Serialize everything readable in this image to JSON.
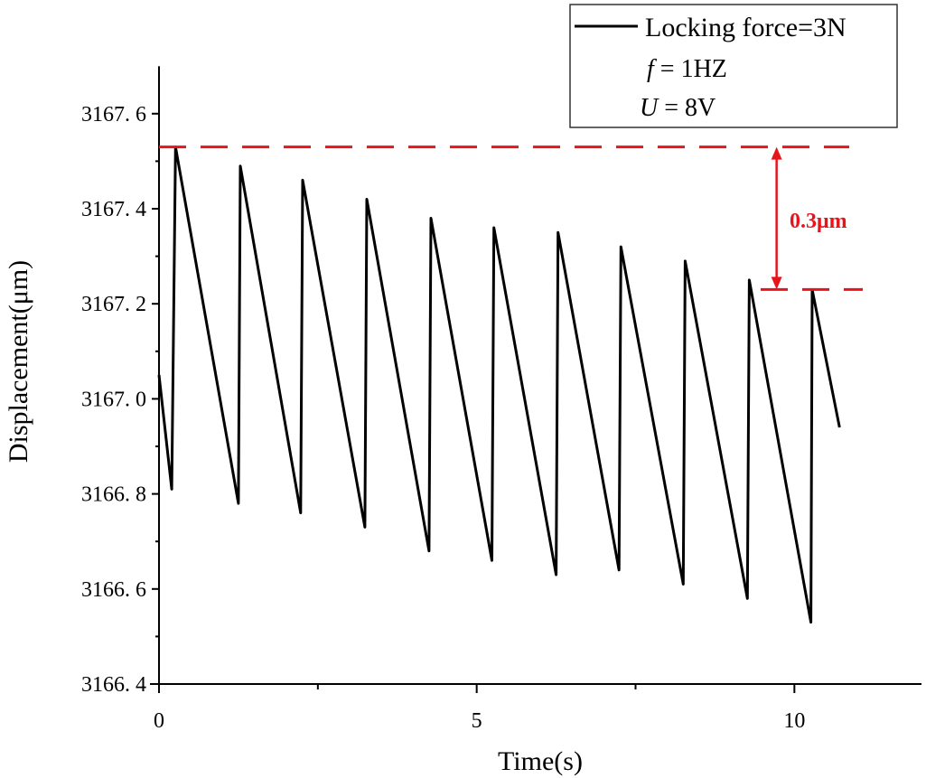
{
  "chart_data": {
    "type": "line",
    "title": "",
    "xlabel": "Time(s)",
    "ylabel": "Displacement(μm)",
    "xlim": [
      0,
      12
    ],
    "ylim": [
      3166.4,
      3167.7
    ],
    "x_ticks": [
      0,
      5,
      10
    ],
    "x_tick_labels": [
      "0",
      "5",
      "10"
    ],
    "y_ticks": [
      3166.4,
      3166.6,
      3166.8,
      3167.0,
      3167.2,
      3167.4,
      3167.6
    ],
    "y_tick_labels": [
      "3166. 4",
      "3166. 6",
      "3166. 8",
      "3167. 0",
      "3167. 2",
      "3167. 4",
      "3167. 6"
    ],
    "grid": false,
    "legend": {
      "placement": "top-right",
      "entry": "Locking force=3N",
      "line2_var": "f",
      "line2_val": " = 1HZ",
      "line3_var": "U",
      "line3_val": " = 8V"
    },
    "series": [
      {
        "name": "Locking force=3N",
        "color": "#000000",
        "x": [
          0,
          0.2,
          0.26,
          1.25,
          1.28,
          2.23,
          2.26,
          3.24,
          3.27,
          4.25,
          4.28,
          5.24,
          5.27,
          6.25,
          6.28,
          7.24,
          7.27,
          8.25,
          8.28,
          9.26,
          9.29,
          10.26,
          10.28,
          10.71
        ],
        "y": [
          3167.05,
          3166.81,
          3167.53,
          3166.78,
          3167.49,
          3166.76,
          3167.46,
          3166.73,
          3167.42,
          3166.68,
          3167.38,
          3166.66,
          3167.36,
          3166.63,
          3167.35,
          3166.64,
          3167.32,
          3166.61,
          3167.29,
          3166.58,
          3167.25,
          3166.53,
          3167.23,
          3166.94
        ]
      }
    ],
    "annotations": {
      "color": "#e8141b",
      "upper_line": 3167.53,
      "lower_line": 3167.23,
      "arrow_x": 9.72,
      "label": "0.3μm"
    }
  }
}
